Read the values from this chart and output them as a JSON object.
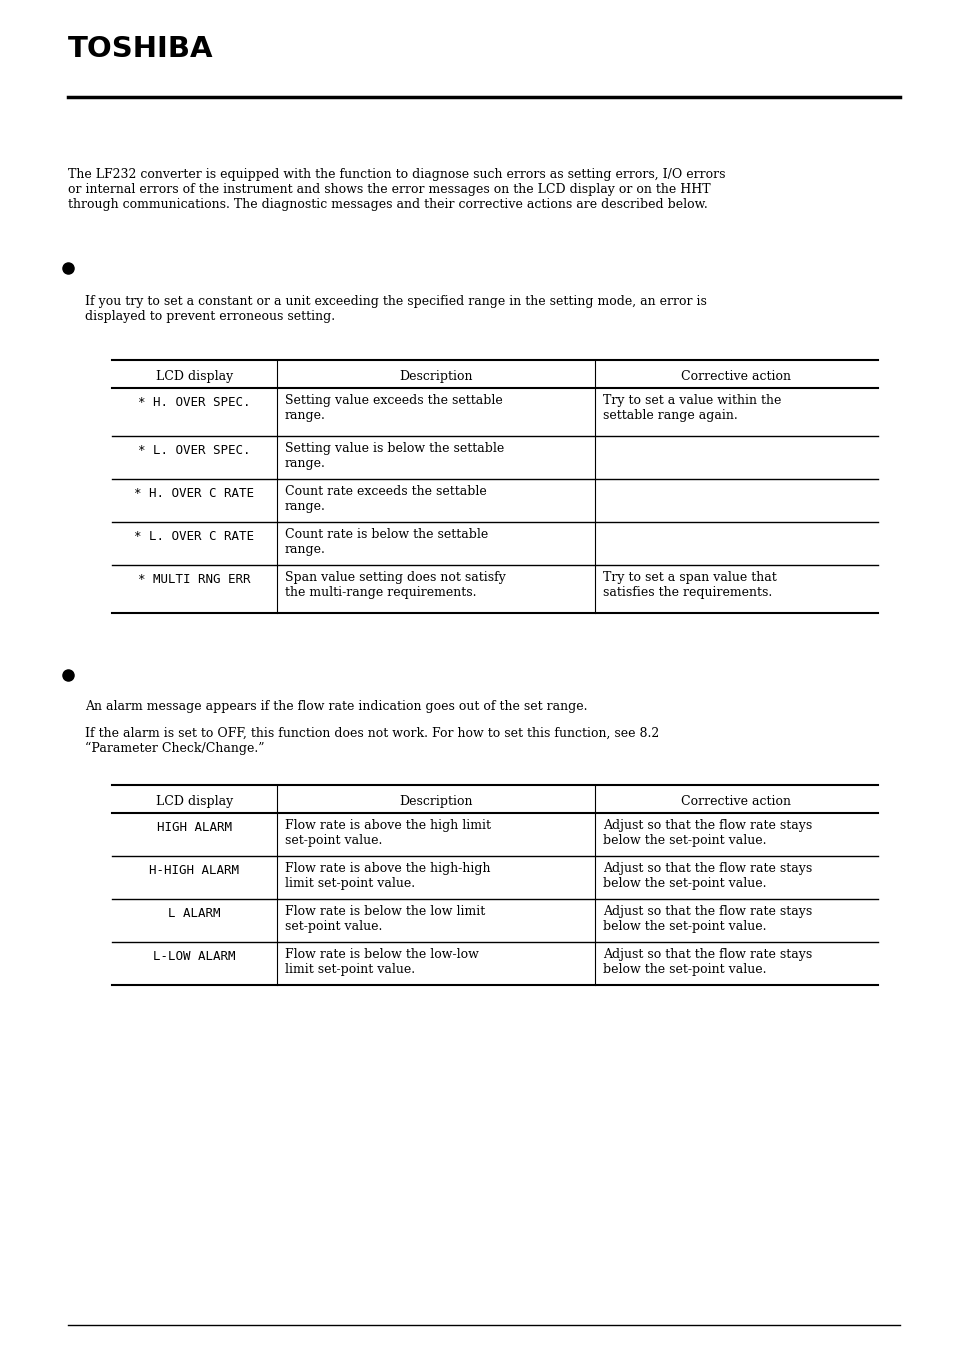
{
  "bg_color": "#ffffff",
  "toshiba_text": "TOSHIBA",
  "intro_text": "The LF232 converter is equipped with the function to diagnose such errors as setting errors, I/O errors\nor internal errors of the instrument and shows the error messages on the LCD display or on the HHT\nthrough communications. The diagnostic messages and their corrective actions are described below.",
  "bullet1_subtext": "If you try to set a constant or a unit exceeding the specified range in the setting mode, an error is\ndisplayed to prevent erroneous setting.",
  "table1_headers": [
    "LCD display",
    "Description",
    "Corrective action"
  ],
  "table1_rows": [
    [
      "* H. OVER SPEC.",
      "Setting value exceeds the settable\nrange.",
      "Try to set a value within the\nsettable range again."
    ],
    [
      "* L. OVER SPEC.",
      "Setting value is below the settable\nrange.",
      ""
    ],
    [
      "* H. OVER C RATE",
      "Count rate exceeds the settable\nrange.",
      ""
    ],
    [
      "* L. OVER C RATE",
      "Count rate is below the settable\nrange.",
      ""
    ],
    [
      "* MULTI RNG ERR",
      "Span value setting does not satisfy\nthe multi-range requirements.",
      "Try to set a span value that\nsatisfies the requirements."
    ]
  ],
  "bullet2_subtext1": "An alarm message appears if the flow rate indication goes out of the set range.",
  "bullet2_subtext2": "If the alarm is set to OFF, this function does not work. For how to set this function, see 8.2\n“Parameter Check/Change.”",
  "table2_headers": [
    "LCD display",
    "Description",
    "Corrective action"
  ],
  "table2_rows": [
    [
      "HIGH ALARM",
      "Flow rate is above the high limit\nset-point value.",
      "Adjust so that the flow rate stays\nbelow the set-point value."
    ],
    [
      "H-HIGH ALARM",
      "Flow rate is above the high-high\nlimit set-point value.",
      "Adjust so that the flow rate stays\nbelow the set-point value."
    ],
    [
      "L ALARM",
      "Flow rate is below the low limit\nset-point value.",
      "Adjust so that the flow rate stays\nbelow the set-point value."
    ],
    [
      "L-LOW ALARM",
      "Flow rate is below the low-low\nlimit set-point value.",
      "Adjust so that the flow rate stays\nbelow the set-point value."
    ]
  ]
}
